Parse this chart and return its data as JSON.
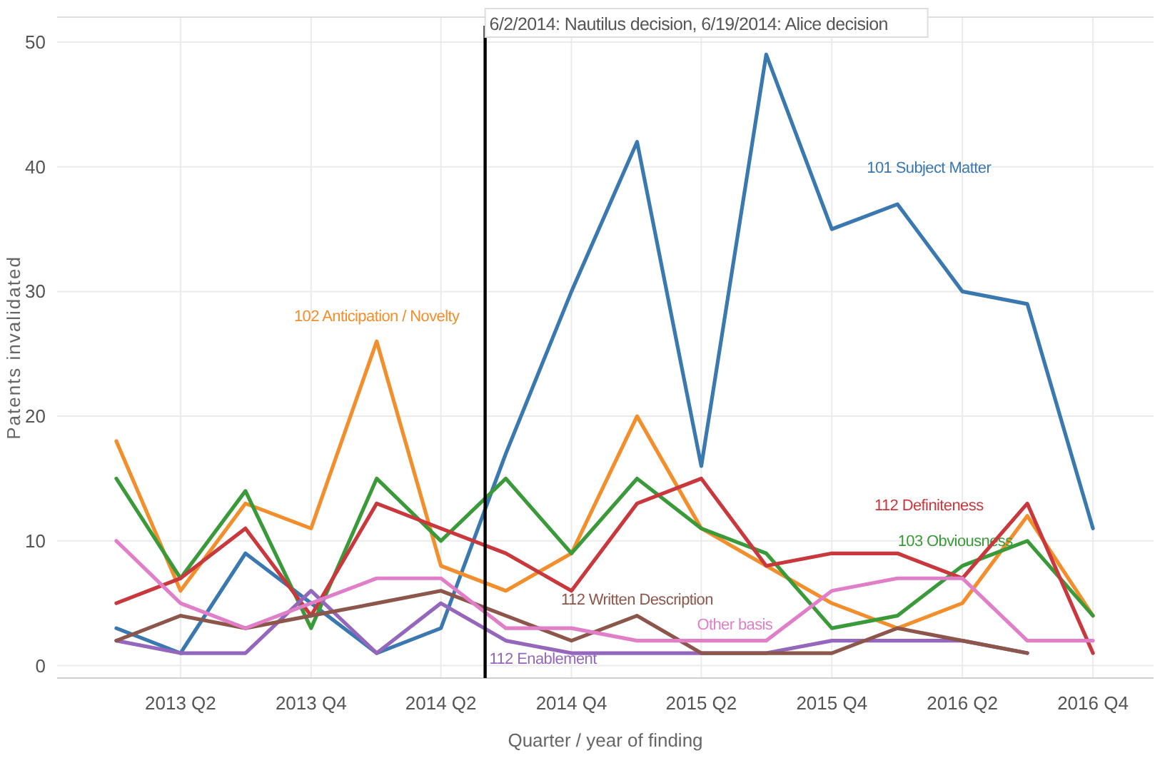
{
  "chart_data": {
    "type": "line",
    "xlabel": "Quarter / year of finding",
    "ylabel": "Patents invalidated",
    "x": [
      "2013-01-01",
      "2013-04-01",
      "2013-07-01",
      "2013-10-01",
      "2014-01-01",
      "2014-04-01",
      "2014-07-01",
      "2014-10-01",
      "2015-01-01",
      "2015-04-01",
      "2015-07-01",
      "2015-10-01",
      "2016-01-01",
      "2016-04-01",
      "2016-07-01",
      "2016-10-01"
    ],
    "series": [
      {
        "name": "101 Subject Matter",
        "color": "#3a78b0",
        "values": [
          3,
          1,
          9,
          5,
          1,
          3,
          17,
          30,
          42,
          16,
          49,
          35,
          37,
          30,
          29,
          11
        ]
      },
      {
        "name": "102 Anticipation / Novelty",
        "color": "#f28e2b",
        "values": [
          18,
          6,
          13,
          11,
          26,
          8,
          6,
          9,
          20,
          11,
          8,
          5,
          3,
          5,
          12,
          4
        ]
      },
      {
        "name": "103 Obviousness",
        "color": "#3a9a3a",
        "values": [
          15,
          7,
          14,
          3,
          15,
          10,
          15,
          9,
          15,
          11,
          9,
          3,
          4,
          8,
          10,
          4
        ]
      },
      {
        "name": "112 Definiteness",
        "color": "#c8383c",
        "values": [
          5,
          7,
          11,
          4,
          13,
          11,
          9,
          6,
          13,
          15,
          8,
          9,
          9,
          7,
          13,
          1
        ]
      },
      {
        "name": "112 Enablement",
        "color": "#9467bd",
        "values": [
          2,
          1,
          1,
          6,
          1,
          5,
          2,
          1,
          1,
          1,
          1,
          2,
          2,
          2,
          1,
          null
        ]
      },
      {
        "name": "112 Written Description",
        "color": "#8c564b",
        "values": [
          2,
          4,
          3,
          4,
          5,
          6,
          4,
          2,
          4,
          1,
          1,
          1,
          3,
          2,
          1,
          null
        ]
      },
      {
        "name": "Other basis",
        "color": "#e07fc8",
        "values": [
          10,
          5,
          3,
          5,
          7,
          7,
          3,
          3,
          2,
          2,
          2,
          6,
          7,
          7,
          2,
          2
        ]
      }
    ],
    "xlim": [
      "2012-10-10",
      "2016-12-25"
    ],
    "xticks": [
      {
        "value": "2013-04-01",
        "label": "2013 Q2"
      },
      {
        "value": "2013-10-01",
        "label": "2013 Q4"
      },
      {
        "value": "2014-04-01",
        "label": "2014 Q2"
      },
      {
        "value": "2014-10-01",
        "label": "2014 Q4"
      },
      {
        "value": "2015-04-01",
        "label": "2015 Q2"
      },
      {
        "value": "2015-10-01",
        "label": "2015 Q4"
      },
      {
        "value": "2016-04-01",
        "label": "2016 Q2"
      },
      {
        "value": "2016-10-01",
        "label": "2016 Q4"
      }
    ],
    "ylim": [
      -1,
      52
    ],
    "yticks": [
      0,
      10,
      20,
      30,
      40,
      50
    ],
    "ref_lines": [
      {
        "axis": "x",
        "value": "2014-06-02",
        "label": "6/2/2014: Nautilus decision, 6/19/2014: Alice decision",
        "color": "#000000"
      }
    ],
    "grid": true,
    "marker": "none",
    "line_style": "solid"
  }
}
